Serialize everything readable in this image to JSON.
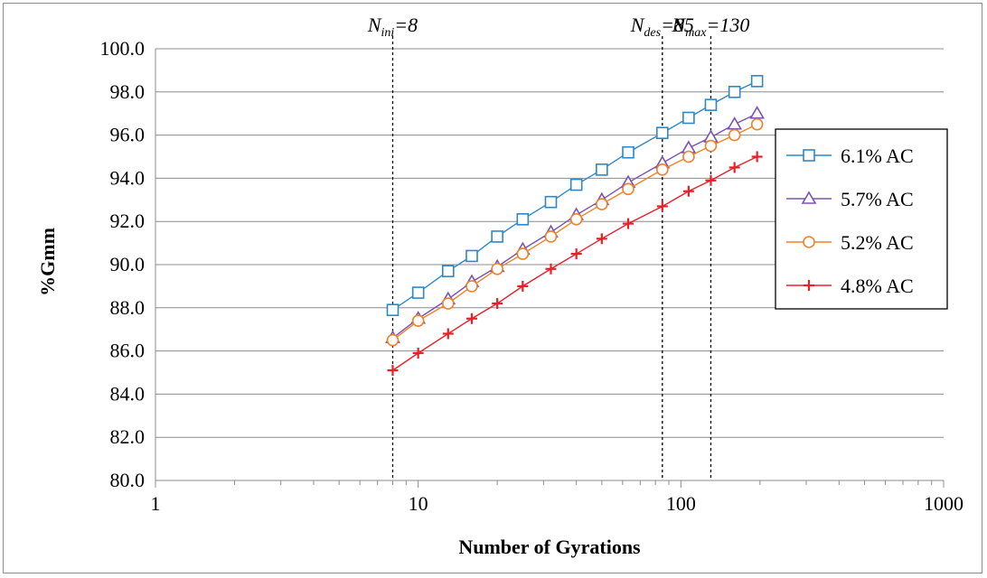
{
  "chart_data": {
    "type": "line",
    "xlabel": "Number of Gyrations",
    "ylabel": "%Gmm",
    "xscale": "log",
    "xlim": [
      1,
      1000
    ],
    "ylim": [
      80.0,
      100.0
    ],
    "x_ticks": [
      "1",
      "10",
      "100",
      "1000"
    ],
    "y_ticks": [
      "80.0",
      "82.0",
      "84.0",
      "86.0",
      "88.0",
      "90.0",
      "92.0",
      "94.0",
      "96.0",
      "98.0",
      "100.0"
    ],
    "grid": "horizontal",
    "legend_position": "right",
    "annotations": [
      {
        "base": "N",
        "sub": "ini",
        "suffix": "=8",
        "x": 8
      },
      {
        "base": "N",
        "sub": "des",
        "suffix": "=85",
        "x": 85
      },
      {
        "base": "N",
        "sub": "max",
        "suffix": "=130",
        "x": 130
      }
    ],
    "x": [
      8,
      10,
      13,
      16,
      20,
      25,
      32,
      40,
      50,
      63,
      85,
      107,
      130,
      160,
      195
    ],
    "series": [
      {
        "name": "6.1% AC",
        "color": "#2e88c8",
        "marker": "square",
        "values": [
          87.9,
          88.7,
          89.7,
          90.4,
          91.3,
          92.1,
          92.9,
          93.7,
          94.4,
          95.2,
          96.1,
          96.8,
          97.4,
          98.0,
          98.5
        ]
      },
      {
        "name": "5.7% AC",
        "color": "#7b52b4",
        "marker": "triangle",
        "values": [
          86.6,
          87.5,
          88.4,
          89.2,
          89.9,
          90.7,
          91.5,
          92.3,
          93.0,
          93.8,
          94.7,
          95.4,
          95.9,
          96.5,
          97.0
        ]
      },
      {
        "name": "5.2% AC",
        "color": "#f0822a",
        "marker": "circle",
        "values": [
          86.5,
          87.4,
          88.2,
          89.0,
          89.8,
          90.5,
          91.3,
          92.1,
          92.8,
          93.5,
          94.4,
          95.0,
          95.5,
          96.0,
          96.5
        ]
      },
      {
        "name": "4.8% AC",
        "color": "#e8202a",
        "marker": "plus",
        "values": [
          85.1,
          85.9,
          86.8,
          87.5,
          88.2,
          89.0,
          89.8,
          90.5,
          91.2,
          91.9,
          92.7,
          93.4,
          93.9,
          94.5,
          95.0
        ]
      }
    ]
  }
}
